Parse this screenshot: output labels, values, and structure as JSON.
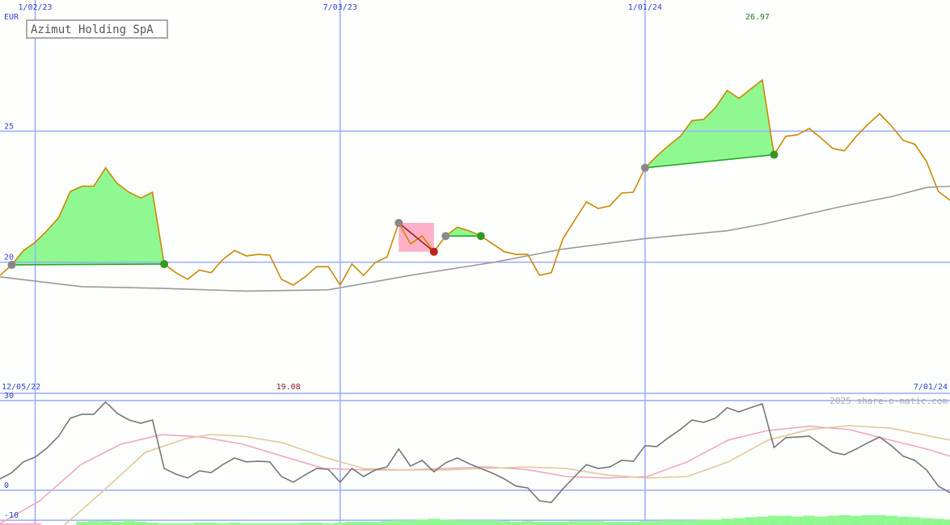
{
  "chart_data": [
    {
      "type": "line",
      "title": "Azimut Holding SpA",
      "unit": "EUR",
      "start_label": "12/05/22",
      "end_label": "7/01/24",
      "max_label": "26.97",
      "min_label": "19.08",
      "x": [
        1,
        2,
        3,
        4,
        5,
        6,
        7,
        8,
        9,
        10,
        11,
        12,
        13,
        14,
        15,
        16,
        17,
        18,
        19,
        20,
        21,
        22,
        23,
        24,
        25,
        26,
        27,
        28,
        29,
        30,
        31,
        32,
        33,
        34,
        35,
        36,
        37,
        38,
        39,
        40,
        41,
        42,
        43,
        44,
        45,
        46,
        47,
        48,
        49,
        50,
        51,
        52,
        53,
        54,
        55,
        56,
        57,
        58,
        59,
        60,
        61,
        62,
        63,
        64,
        65,
        66,
        67,
        68,
        69,
        70,
        71,
        72,
        73,
        74,
        75,
        76,
        77,
        78,
        79,
        80,
        81,
        82
      ],
      "xlim": [
        1,
        82
      ],
      "xticks": [
        {
          "value": 4,
          "label": "1/02/23"
        },
        {
          "value": 30,
          "label": "7/03/23"
        },
        {
          "value": 56,
          "label": "1/01/24"
        }
      ],
      "ylim": [
        15,
        30
      ],
      "yticks": [
        20,
        25
      ],
      "grid": true,
      "series": [
        {
          "color": "#cc8800",
          "values": [
            19.5,
            19.9,
            20.45,
            20.76,
            21.2,
            21.7,
            22.7,
            22.9,
            22.9,
            23.6,
            23.0,
            22.67,
            22.45,
            22.67,
            19.93,
            19.6,
            19.35,
            19.7,
            19.6,
            20.1,
            20.45,
            20.24,
            20.3,
            20.27,
            19.35,
            19.13,
            19.44,
            19.83,
            19.83,
            19.13,
            19.93,
            19.5,
            19.99,
            20.2,
            21.5,
            20.7,
            21.0,
            20.4,
            21.0,
            21.34,
            21.2,
            21.0,
            20.7,
            20.4,
            20.3,
            20.3,
            19.5,
            19.6,
            20.9,
            21.6,
            22.3,
            22.05,
            22.15,
            22.64,
            22.67,
            23.6,
            24.05,
            24.45,
            24.8,
            25.4,
            25.45,
            25.9,
            26.55,
            26.25,
            26.6,
            26.95,
            24.1,
            24.8,
            24.86,
            25.1,
            24.74,
            24.34,
            24.25,
            24.8,
            25.26,
            25.66,
            25.2,
            24.65,
            24.5,
            23.84,
            22.7,
            22.36
          ]
        },
        {
          "color": "#999999",
          "x": [
            1,
            8,
            15,
            22,
            29,
            36,
            43,
            49,
            56,
            63,
            66,
            70,
            73,
            77,
            80,
            82
          ],
          "values": [
            19.44,
            19.07,
            19.0,
            18.9,
            18.95,
            19.5,
            19.99,
            20.5,
            20.9,
            21.2,
            21.45,
            21.85,
            22.15,
            22.5,
            22.85,
            22.9
          ]
        }
      ],
      "trades": [
        {
          "entry_x": 2,
          "entry": 19.9,
          "exit_x": 15,
          "exit": 19.93,
          "fill": "#90f890",
          "line": "#22aa22",
          "exit_color": "#339922"
        },
        {
          "entry_x": 35,
          "entry": 21.5,
          "exit_x": 38,
          "exit": 20.4,
          "fill": "#ffb0c8",
          "line": "#992222",
          "exit_color": "#bb2222"
        },
        {
          "entry_x": 39,
          "entry": 21.0,
          "exit_x": 42,
          "exit": 21.0,
          "fill": "#90f890",
          "line": "#22aa22",
          "exit_color": "#339922"
        },
        {
          "entry_x": 56,
          "entry": 23.6,
          "exit_x": 67,
          "exit": 24.1,
          "fill": "#90f890",
          "line": "#22aa22",
          "exit_color": "#339922"
        }
      ]
    },
    {
      "type": "line",
      "source": "2025 share-o-matic.com",
      "ylim": [
        -11.6,
        32.4
      ],
      "yticks": [
        30,
        0,
        -10
      ],
      "series": [
        {
          "type": "bar",
          "color": "#ffb0c8",
          "x": [
            1,
            2,
            3,
            4
          ],
          "values": [
            -11,
            -11,
            -11,
            -11
          ]
        },
        {
          "type": "bar",
          "color": "#90f890",
          "x": [
            8,
            9,
            10,
            11,
            12,
            13,
            14,
            15,
            16,
            17,
            18,
            19,
            20,
            21,
            22,
            23,
            24,
            25,
            26,
            27,
            28,
            29,
            30,
            31,
            32,
            33,
            34,
            35,
            36,
            37,
            38,
            39,
            40,
            41,
            42,
            43,
            44,
            45,
            46,
            47,
            48,
            49,
            50,
            51,
            52,
            53,
            54,
            55,
            56,
            57,
            58,
            59,
            60,
            61,
            62,
            63,
            64,
            65,
            66,
            67,
            68,
            69,
            70,
            71,
            72,
            73,
            74,
            75,
            76,
            77,
            78,
            79,
            80,
            81,
            82
          ],
          "values": [
            -10.5,
            -10.3,
            -10.3,
            -10.5,
            -10,
            -10.5,
            -10.8,
            -11,
            -11,
            -11,
            -10.8,
            -10.8,
            -11,
            -10.8,
            -11,
            -11,
            -11,
            -11,
            -11,
            -10.8,
            -10.8,
            -11,
            -10.8,
            -10.5,
            -10.5,
            -10.5,
            -10.3,
            -10,
            -10,
            -9.8,
            -9.5,
            -9.8,
            -10,
            -10,
            -10,
            -10,
            -10.3,
            -10.5,
            -10.3,
            -10.5,
            -10.5,
            -10.5,
            -10.3,
            -10.3,
            -10.3,
            -10.5,
            -10.5,
            -10.5,
            -10.3,
            -10.3,
            -10,
            -10,
            -10,
            -9.8,
            -9.8,
            -9.5,
            -9.3,
            -9,
            -8.8,
            -8.5,
            -8.5,
            -8.8,
            -8.5,
            -8.8,
            -8.5,
            -8.3,
            -8.5,
            -8.3,
            -8.3,
            -8.5,
            -8.8,
            -9,
            -9.3,
            -9.5,
            -9.8
          ]
        },
        {
          "color": "#f0a8c0",
          "x": [
            1,
            4.4,
            7.9,
            11.3,
            14.8,
            18.2,
            21.7,
            25.1,
            28.6,
            32,
            35.5,
            38.9,
            42.4,
            45.8,
            49.3,
            52.7,
            56.2,
            59.6,
            63.1,
            66.5,
            70,
            73.4,
            76.9,
            80.3,
            82
          ],
          "values": [
            -11.1,
            -3.5,
            8.6,
            15.4,
            18.6,
            17.8,
            15.4,
            11.4,
            7.3,
            6.8,
            6.8,
            7.3,
            7.8,
            7.0,
            4.6,
            4.1,
            4.6,
            9.5,
            16.8,
            20.0,
            21.4,
            20.3,
            16.8,
            13.5,
            11.4
          ]
        },
        {
          "color": "#e0c898",
          "x": [
            6.5,
            10,
            13.4,
            16.9,
            18.9,
            21.7,
            25.1,
            28.6,
            32,
            35.5,
            38.9,
            42.4,
            45.8,
            49.3,
            52.7,
            56.2,
            59.6,
            63.1,
            66.5,
            70,
            73.4,
            76.9,
            80.3,
            82
          ],
          "values": [
            -11.6,
            0.5,
            12.7,
            17.3,
            18.6,
            18.1,
            15.9,
            11.1,
            7.3,
            6.8,
            6.8,
            7.3,
            7.8,
            7.3,
            5.1,
            4.1,
            4.6,
            9.5,
            16.8,
            20.3,
            21.6,
            20.8,
            18.1,
            16.8
          ]
        },
        {
          "color": "#777777",
          "values": [
            3.8,
            5.9,
            9.5,
            11.1,
            14.1,
            18.1,
            24.1,
            25.4,
            25.4,
            29.5,
            25.7,
            23.5,
            22.4,
            23.5,
            7.3,
            5.4,
            4.1,
            6.5,
            5.9,
            8.6,
            10.8,
            9.5,
            9.7,
            9.5,
            4.6,
            2.7,
            5.1,
            7.3,
            7.0,
            2.7,
            7.3,
            4.6,
            6.8,
            7.8,
            13.8,
            8.1,
            10.0,
            6.2,
            9.2,
            10.8,
            8.9,
            7.3,
            5.7,
            3.8,
            1.4,
            0.8,
            -3.5,
            -4.1,
            0.5,
            4.6,
            8.6,
            7.3,
            7.8,
            10.0,
            9.7,
            14.9,
            14.6,
            17.6,
            20.3,
            23.5,
            22.7,
            24.1,
            27.6,
            26.2,
            27.6,
            28.9,
            14.3,
            17.6,
            17.8,
            18.1,
            15.4,
            12.7,
            11.9,
            13.8,
            15.9,
            17.8,
            14.9,
            11.4,
            10.0,
            6.8,
            1.4,
            -0.8
          ]
        }
      ]
    }
  ]
}
